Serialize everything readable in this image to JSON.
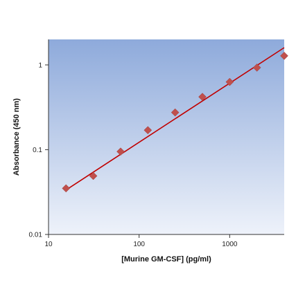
{
  "chart_data": {
    "type": "scatter",
    "title": "",
    "xlabel": "[Murine GM-CSF] (pg/ml)",
    "ylabel": "Absorbance (450 nm)",
    "x_scale": "log",
    "y_scale": "log",
    "xlim": [
      10,
      4000
    ],
    "ylim": [
      0.01,
      2
    ],
    "x_ticks": [
      {
        "value": 10,
        "label": "10"
      },
      {
        "value": 100,
        "label": "100"
      },
      {
        "value": 1000,
        "label": "1000"
      }
    ],
    "y_ticks": [
      {
        "value": 0.01,
        "label": "0.01"
      },
      {
        "value": 0.1,
        "label": "0.1"
      },
      {
        "value": 1,
        "label": "1"
      }
    ],
    "grid": false,
    "legend": "none",
    "series": [
      {
        "marker": "diamond",
        "color": "#c0504d",
        "points": [
          {
            "x": 15.6,
            "y": 0.035
          },
          {
            "x": 31.2,
            "y": 0.049
          },
          {
            "x": 62.5,
            "y": 0.095
          },
          {
            "x": 125,
            "y": 0.17
          },
          {
            "x": 250,
            "y": 0.275
          },
          {
            "x": 500,
            "y": 0.42
          },
          {
            "x": 1000,
            "y": 0.63
          },
          {
            "x": 2000,
            "y": 0.93
          },
          {
            "x": 4000,
            "y": 1.28
          }
        ]
      }
    ],
    "fit_line": {
      "color": "#c00000",
      "x_range": [
        15.6,
        4000
      ],
      "y_range": [
        0.0335,
        1.6
      ]
    },
    "plot_background": {
      "top_color": "#8eaadb",
      "bottom_color": "#eef2fa"
    }
  }
}
